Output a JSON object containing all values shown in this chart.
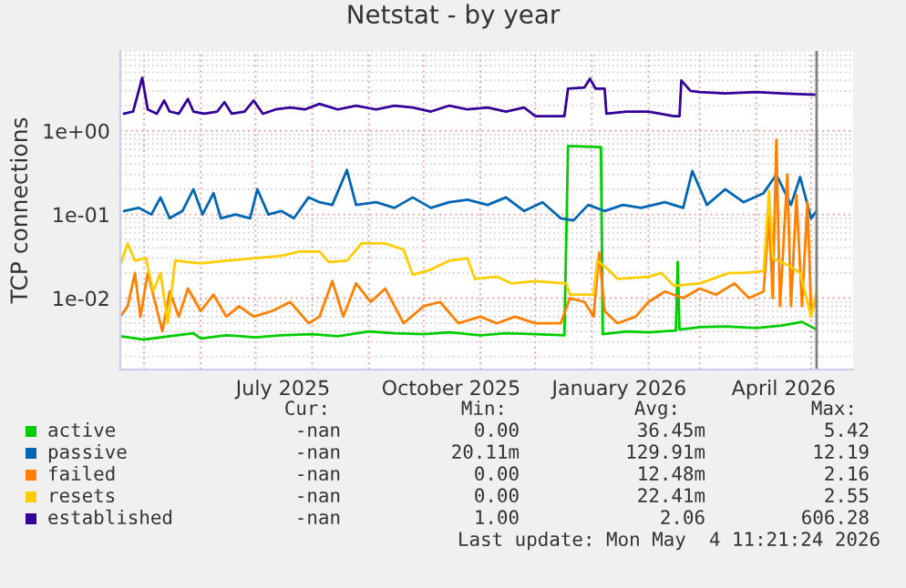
{
  "chart_data": {
    "type": "line",
    "title": "Netstat - by year",
    "ylabel": "TCP connections",
    "log": true,
    "grid": true,
    "legend": "bottom",
    "xlim": [
      "2025-04-18",
      "2026-05-24"
    ],
    "xticks": [
      {
        "value": "2025-05-01",
        "label": null
      },
      {
        "value": "2025-06-01",
        "label": null
      },
      {
        "value": "2025-07-01",
        "label": null
      },
      {
        "value": "2025-07-16",
        "label": "July 2025"
      },
      {
        "value": "2025-08-01",
        "label": null
      },
      {
        "value": "2025-09-01",
        "label": null
      },
      {
        "value": "2025-10-01",
        "label": null
      },
      {
        "value": "2025-10-16",
        "label": "October 2025"
      },
      {
        "value": "2025-11-01",
        "label": null
      },
      {
        "value": "2025-12-01",
        "label": null
      },
      {
        "value": "2026-01-01",
        "label": null
      },
      {
        "value": "2026-01-16",
        "label": "January 2026"
      },
      {
        "value": "2026-02-01",
        "label": null
      },
      {
        "value": "2026-03-01",
        "label": null
      },
      {
        "value": "2026-04-01",
        "label": null
      },
      {
        "value": "2026-04-16",
        "label": "April 2026"
      },
      {
        "value": "2026-05-01",
        "label": null
      }
    ],
    "ylim": [
      0.0014,
      9
    ],
    "yticks": [
      {
        "value": 0.01,
        "label": "1e-02"
      },
      {
        "value": 0.1,
        "label": "1e-01"
      },
      {
        "value": 1,
        "label": "1e+00"
      }
    ],
    "ref_lines": [
      {
        "axis": "x",
        "value": "2026-05-04",
        "label": null,
        "color": "#808080"
      }
    ],
    "series": [
      {
        "name": "active",
        "color": "#00cc00",
        "x": [
          "2025-04-18",
          "2025-05-01",
          "2025-05-15",
          "2025-05-28",
          "2025-06-01",
          "2025-06-15",
          "2025-07-01",
          "2025-07-15",
          "2025-08-01",
          "2025-08-15",
          "2025-09-01",
          "2025-09-15",
          "2025-10-01",
          "2025-10-15",
          "2025-11-01",
          "2025-11-15",
          "2025-12-01",
          "2025-12-17",
          "2025-12-19",
          "2026-01-06",
          "2026-01-07",
          "2026-01-20",
          "2026-02-01",
          "2026-02-16",
          "2026-02-17",
          "2026-02-18",
          "2026-03-01",
          "2026-03-15",
          "2026-04-01",
          "2026-04-15",
          "2026-04-26",
          "2026-05-04"
        ],
        "values": [
          0.0035,
          0.0032,
          0.0035,
          0.0038,
          0.0033,
          0.0036,
          0.0034,
          0.0036,
          0.0037,
          0.0035,
          0.004,
          0.0038,
          0.0037,
          0.0039,
          0.0036,
          0.0038,
          0.0037,
          0.0036,
          0.66,
          0.64,
          0.0037,
          0.004,
          0.0039,
          0.0041,
          0.027,
          0.0042,
          0.0045,
          0.0046,
          0.0044,
          0.0047,
          0.0052,
          0.0042
        ]
      },
      {
        "name": "passive",
        "color": "#0066b3",
        "x": [
          "2025-04-20",
          "2025-04-28",
          "2025-05-05",
          "2025-05-10",
          "2025-05-15",
          "2025-05-22",
          "2025-05-28",
          "2025-06-02",
          "2025-06-08",
          "2025-06-12",
          "2025-06-20",
          "2025-06-28",
          "2025-07-02",
          "2025-07-08",
          "2025-07-15",
          "2025-07-22",
          "2025-07-30",
          "2025-08-05",
          "2025-08-12",
          "2025-08-20",
          "2025-08-25",
          "2025-09-05",
          "2025-09-15",
          "2025-09-25",
          "2025-10-05",
          "2025-10-15",
          "2025-10-25",
          "2025-11-05",
          "2025-11-15",
          "2025-11-25",
          "2025-12-05",
          "2025-12-15",
          "2025-12-22",
          "2025-12-30",
          "2026-01-08",
          "2026-01-18",
          "2026-01-28",
          "2026-02-10",
          "2026-02-20",
          "2026-02-25",
          "2026-03-05",
          "2026-03-15",
          "2026-03-25",
          "2026-04-05",
          "2026-04-12",
          "2026-04-20",
          "2026-04-25",
          "2026-05-01",
          "2026-05-04"
        ],
        "values": [
          0.11,
          0.12,
          0.1,
          0.16,
          0.09,
          0.11,
          0.2,
          0.1,
          0.18,
          0.09,
          0.1,
          0.09,
          0.2,
          0.1,
          0.11,
          0.09,
          0.16,
          0.14,
          0.13,
          0.34,
          0.13,
          0.14,
          0.12,
          0.16,
          0.12,
          0.14,
          0.15,
          0.13,
          0.16,
          0.11,
          0.14,
          0.09,
          0.085,
          0.13,
          0.11,
          0.13,
          0.12,
          0.14,
          0.12,
          0.33,
          0.13,
          0.2,
          0.14,
          0.18,
          0.3,
          0.13,
          0.28,
          0.09,
          0.11
        ]
      },
      {
        "name": "failed",
        "color": "#ff8000",
        "x": [
          "2025-04-18",
          "2025-04-22",
          "2025-04-26",
          "2025-04-29",
          "2025-05-03",
          "2025-05-07",
          "2025-05-11",
          "2025-05-15",
          "2025-05-20",
          "2025-05-25",
          "2025-06-01",
          "2025-06-08",
          "2025-06-15",
          "2025-06-22",
          "2025-06-30",
          "2025-07-10",
          "2025-07-20",
          "2025-07-30",
          "2025-08-05",
          "2025-08-12",
          "2025-08-18",
          "2025-08-25",
          "2025-09-02",
          "2025-09-10",
          "2025-09-20",
          "2025-10-01",
          "2025-10-10",
          "2025-10-20",
          "2025-11-01",
          "2025-11-10",
          "2025-11-20",
          "2025-12-01",
          "2025-12-15",
          "2025-12-20",
          "2025-12-28",
          "2026-01-02",
          "2026-01-05",
          "2026-01-08",
          "2026-01-15",
          "2026-01-25",
          "2026-02-01",
          "2026-02-10",
          "2026-02-20",
          "2026-03-01",
          "2026-03-10",
          "2026-03-20",
          "2026-03-28",
          "2026-04-05",
          "2026-04-08",
          "2026-04-10",
          "2026-04-12",
          "2026-04-14",
          "2026-04-18",
          "2026-04-20",
          "2026-04-23",
          "2026-04-26",
          "2026-04-29",
          "2026-05-01",
          "2026-05-04"
        ],
        "values": [
          0.006,
          0.008,
          0.02,
          0.006,
          0.02,
          0.009,
          0.004,
          0.012,
          0.006,
          0.013,
          0.007,
          0.011,
          0.006,
          0.008,
          0.006,
          0.007,
          0.009,
          0.005,
          0.006,
          0.016,
          0.006,
          0.015,
          0.009,
          0.013,
          0.005,
          0.008,
          0.009,
          0.005,
          0.006,
          0.005,
          0.006,
          0.005,
          0.005,
          0.01,
          0.009,
          0.006,
          0.035,
          0.007,
          0.005,
          0.006,
          0.009,
          0.012,
          0.01,
          0.013,
          0.011,
          0.015,
          0.01,
          0.012,
          0.1,
          0.01,
          0.78,
          0.008,
          0.3,
          0.008,
          0.17,
          0.008,
          0.14,
          0.007,
          0.009
        ]
      },
      {
        "name": "resets",
        "color": "#ffcc00",
        "x": [
          "2025-04-18",
          "2025-04-22",
          "2025-04-26",
          "2025-05-02",
          "2025-05-06",
          "2025-05-10",
          "2025-05-14",
          "2025-05-18",
          "2025-06-01",
          "2025-06-15",
          "2025-07-01",
          "2025-07-15",
          "2025-07-25",
          "2025-08-05",
          "2025-08-10",
          "2025-08-20",
          "2025-08-28",
          "2025-09-10",
          "2025-09-20",
          "2025-09-25",
          "2025-10-05",
          "2025-10-15",
          "2025-10-25",
          "2025-10-29",
          "2025-11-10",
          "2025-11-18",
          "2025-12-01",
          "2025-12-18",
          "2025-12-20",
          "2026-01-02",
          "2026-01-04",
          "2026-01-10",
          "2026-01-15",
          "2026-02-01",
          "2026-02-08",
          "2026-02-15",
          "2026-03-01",
          "2026-03-17",
          "2026-03-25",
          "2026-04-05",
          "2026-04-08",
          "2026-04-10",
          "2026-04-18",
          "2026-04-25",
          "2026-05-01",
          "2026-05-04"
        ],
        "values": [
          0.025,
          0.045,
          0.028,
          0.03,
          0.012,
          0.02,
          0.005,
          0.028,
          0.026,
          0.028,
          0.03,
          0.032,
          0.036,
          0.036,
          0.027,
          0.028,
          0.045,
          0.045,
          0.038,
          0.019,
          0.022,
          0.028,
          0.03,
          0.017,
          0.018,
          0.015,
          0.016,
          0.015,
          0.011,
          0.011,
          0.028,
          0.022,
          0.017,
          0.018,
          0.02,
          0.014,
          0.015,
          0.02,
          0.02,
          0.021,
          0.19,
          0.03,
          0.025,
          0.02,
          0.006,
          0.012
        ]
      },
      {
        "name": "established",
        "color": "#330099",
        "x": [
          "2025-04-20",
          "2025-04-25",
          "2025-04-30",
          "2025-05-03",
          "2025-05-08",
          "2025-05-12",
          "2025-05-15",
          "2025-05-20",
          "2025-05-25",
          "2025-05-28",
          "2025-06-03",
          "2025-06-10",
          "2025-06-14",
          "2025-06-18",
          "2025-06-25",
          "2025-06-30",
          "2025-07-05",
          "2025-07-12",
          "2025-07-20",
          "2025-07-28",
          "2025-08-05",
          "2025-08-15",
          "2025-08-25",
          "2025-09-05",
          "2025-09-15",
          "2025-09-25",
          "2025-10-05",
          "2025-10-15",
          "2025-10-25",
          "2025-11-05",
          "2025-11-15",
          "2025-11-25",
          "2025-12-01",
          "2025-12-17",
          "2025-12-19",
          "2025-12-28",
          "2025-12-31",
          "2026-01-03",
          "2026-01-08",
          "2026-01-09",
          "2026-01-20",
          "2026-02-01",
          "2026-02-15",
          "2026-02-18",
          "2026-02-19",
          "2026-02-24",
          "2026-03-01",
          "2026-03-15",
          "2026-04-01",
          "2026-04-15",
          "2026-05-04"
        ],
        "values": [
          1.6,
          1.7,
          4.3,
          1.8,
          1.6,
          2.3,
          1.7,
          1.6,
          2.4,
          1.7,
          1.6,
          1.7,
          2.2,
          1.6,
          1.7,
          2.3,
          1.6,
          1.8,
          1.9,
          1.8,
          2.1,
          1.8,
          2.0,
          1.8,
          2.0,
          1.9,
          1.7,
          2.0,
          1.8,
          1.9,
          1.7,
          1.9,
          1.5,
          1.5,
          3.2,
          3.3,
          4.2,
          3.2,
          3.2,
          1.6,
          1.7,
          1.7,
          1.5,
          1.5,
          4.0,
          3.0,
          2.9,
          2.8,
          2.9,
          2.8,
          2.7
        ]
      }
    ],
    "annotations": [
      "Cur:",
      "Min:",
      "Avg:",
      "Max:",
      "-nan",
      "0.00",
      "36.45m",
      "5.42",
      "-nan",
      "20.11m",
      "129.91m",
      "12.19",
      "-nan",
      "0.00",
      "12.48m",
      "2.16",
      "-nan",
      "0.00",
      "22.41m",
      "2.55",
      "-nan",
      "1.00",
      "2.06",
      "606.28",
      "Last update: Mon May  4 11:21:24 2026"
    ]
  }
}
